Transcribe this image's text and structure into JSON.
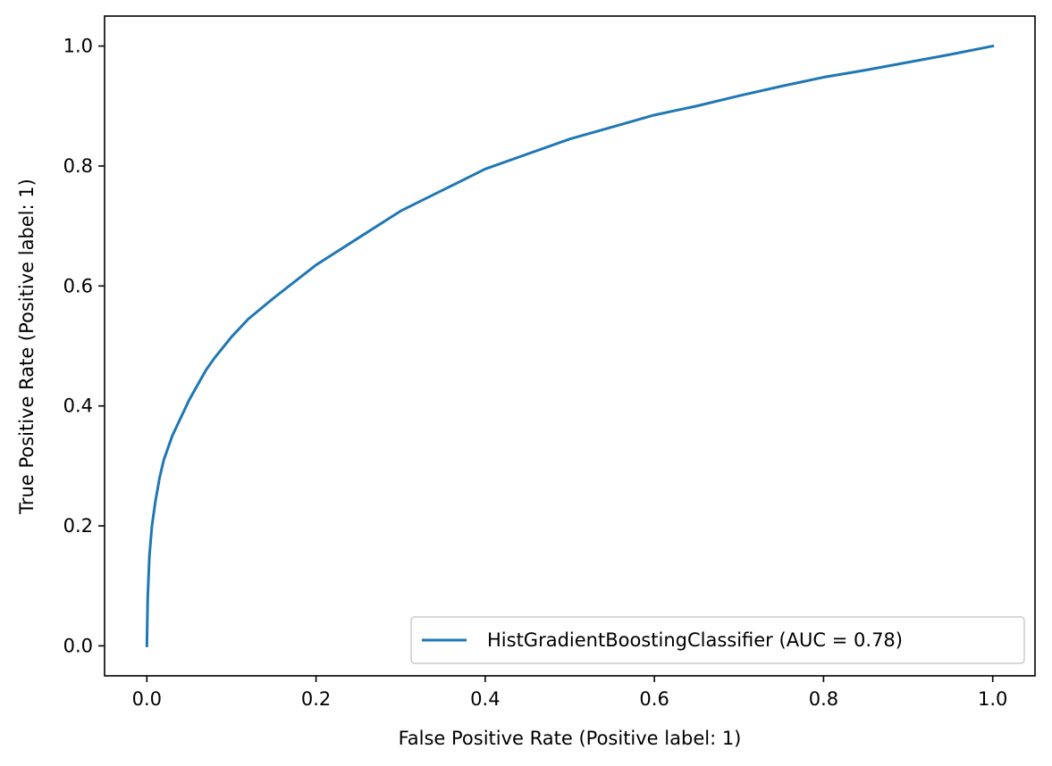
{
  "chart_data": {
    "type": "line",
    "title": "",
    "xlabel": "False Positive Rate (Positive label: 1)",
    "ylabel": "True Positive Rate (Positive label: 1)",
    "xlim": [
      -0.05,
      1.05
    ],
    "ylim": [
      -0.05,
      1.05
    ],
    "xticks": [
      0.0,
      0.2,
      0.4,
      0.6,
      0.8,
      1.0
    ],
    "xtick_labels": [
      "0.0",
      "0.2",
      "0.4",
      "0.6",
      "0.8",
      "1.0"
    ],
    "yticks": [
      0.0,
      0.2,
      0.4,
      0.6,
      0.8,
      1.0
    ],
    "ytick_labels": [
      "0.0",
      "0.2",
      "0.4",
      "0.6",
      "0.8",
      "1.0"
    ],
    "grid": false,
    "legend": {
      "placement": "lower-right",
      "entries": [
        "HistGradientBoostingClassifier (AUC = 0.78)"
      ]
    },
    "series": [
      {
        "name": "HistGradientBoostingClassifier (AUC = 0.78)",
        "color": "#1f77b4",
        "x": [
          0.0,
          0.001,
          0.003,
          0.006,
          0.01,
          0.015,
          0.02,
          0.03,
          0.04,
          0.05,
          0.06,
          0.07,
          0.08,
          0.1,
          0.12,
          0.15,
          0.2,
          0.25,
          0.3,
          0.35,
          0.4,
          0.45,
          0.5,
          0.55,
          0.6,
          0.65,
          0.7,
          0.75,
          0.8,
          0.85,
          0.9,
          0.95,
          1.0
        ],
        "y": [
          0.0,
          0.08,
          0.15,
          0.2,
          0.24,
          0.28,
          0.31,
          0.35,
          0.38,
          0.41,
          0.435,
          0.46,
          0.48,
          0.515,
          0.545,
          0.58,
          0.635,
          0.68,
          0.725,
          0.76,
          0.795,
          0.82,
          0.845,
          0.865,
          0.885,
          0.9,
          0.917,
          0.933,
          0.948,
          0.96,
          0.973,
          0.986,
          1.0
        ]
      }
    ]
  }
}
